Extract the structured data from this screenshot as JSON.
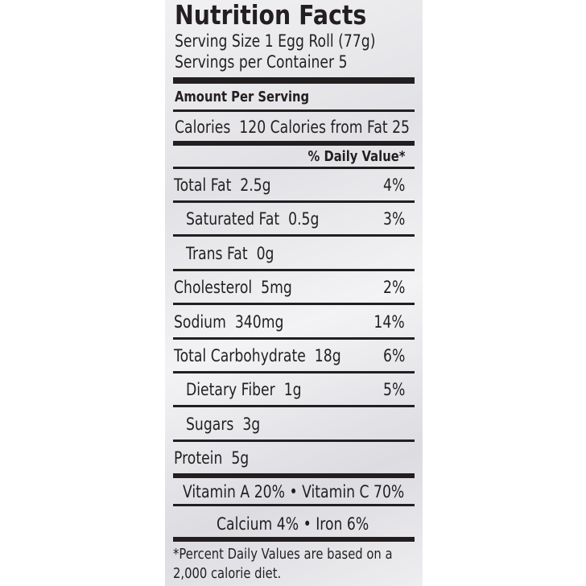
{
  "header": {
    "title": "Nutrition Facts",
    "serving_size": "Serving Size 1 Egg Roll  (77g)",
    "servings": "Servings per Container 5"
  },
  "amount_per_serving": "Amount Per Serving",
  "calories": {
    "label": "Calories",
    "value": "120",
    "from_fat": "Calories from Fat 25"
  },
  "daily_value_header": "% Daily Value*",
  "rows": [
    {
      "label": "Total Fat",
      "amount": "2.5g",
      "dv": "4%",
      "indent": false
    },
    {
      "label": "Saturated Fat",
      "amount": "0.5g",
      "dv": "3%",
      "indent": true
    },
    {
      "label": "Trans Fat",
      "amount": "0g",
      "dv": null,
      "indent": true
    },
    {
      "label": "Cholesterol",
      "amount": "5mg",
      "dv": "2%",
      "indent": false
    },
    {
      "label": "Sodium",
      "amount": "340mg",
      "dv": "14%",
      "indent": false
    },
    {
      "label": "Total Carbohydrate",
      "amount": "18g",
      "dv": "6%",
      "indent": false
    },
    {
      "label": "Dietary Fiber",
      "amount": "1g",
      "dv": "5%",
      "indent": true
    },
    {
      "label": "Sugars",
      "amount": "3g",
      "dv": null,
      "indent": true
    },
    {
      "label": "Protein",
      "amount": "5g",
      "dv": null,
      "indent": false
    }
  ],
  "vitamins": [
    [
      "Vitamin A 20%",
      "Vitamin C 70%"
    ],
    [
      "Calcium 4%",
      "Iron 6%"
    ]
  ],
  "footnote": [
    "*Percent Daily Values are based on a",
    "2,000 calorie diet."
  ]
}
